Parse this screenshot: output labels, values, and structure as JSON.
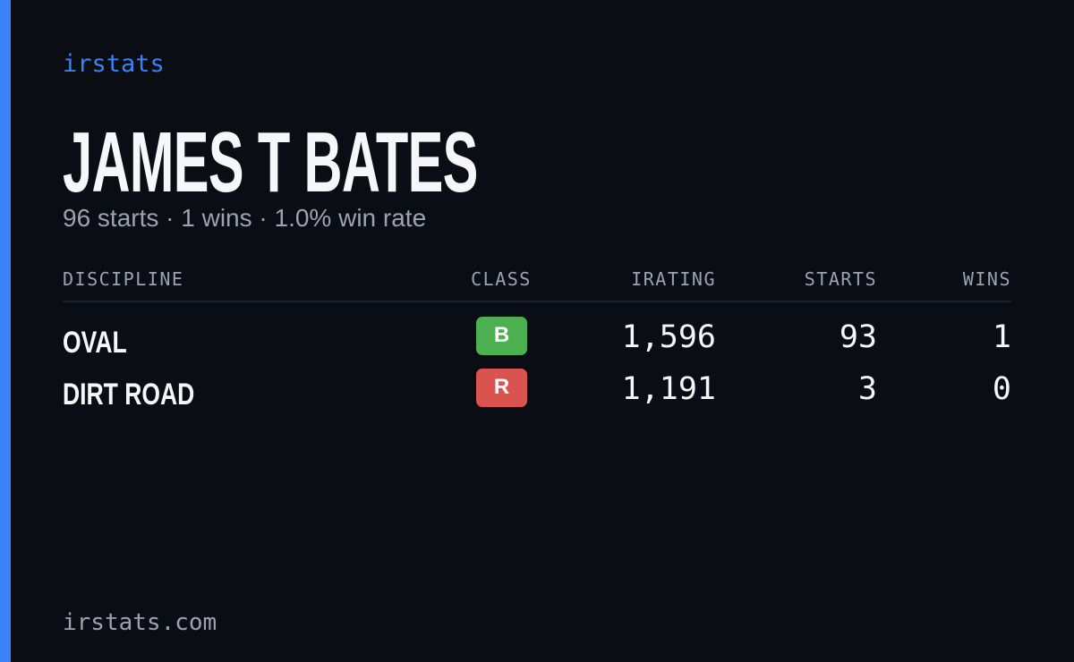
{
  "brand": "irstats",
  "driver": {
    "name": "JAMES T BATES",
    "summary": "96 starts · 1 wins · 1.0% win rate"
  },
  "table": {
    "headers": [
      "DISCIPLINE",
      "CLASS",
      "IRATING",
      "STARTS",
      "WINS"
    ],
    "rows": [
      [
        "OVAL",
        "B",
        "1,596",
        "93",
        "1"
      ],
      [
        "DIRT ROAD",
        "R",
        "1,191",
        "3",
        "0"
      ]
    ]
  },
  "footer": "irstats.com"
}
